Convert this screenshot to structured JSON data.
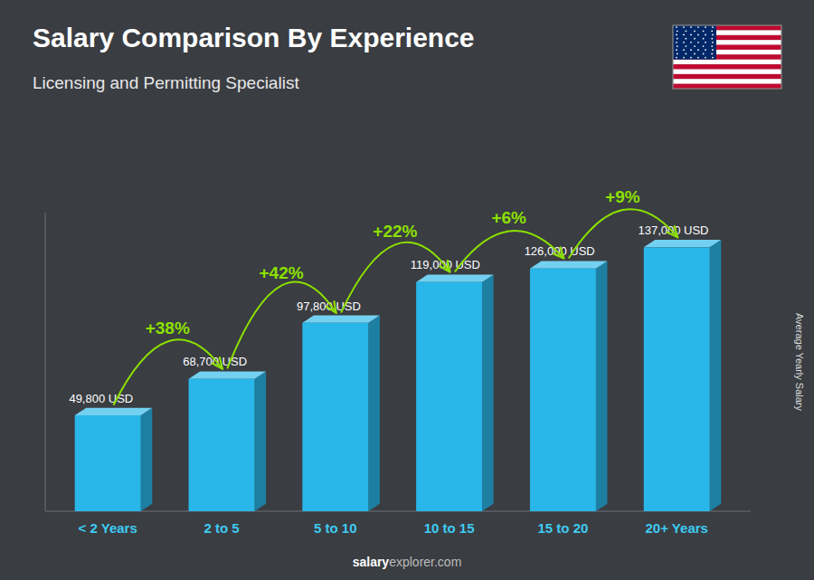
{
  "chart_data": {
    "type": "bar",
    "title": "Salary Comparison By Experience",
    "subtitle": "Licensing and Permitting Specialist",
    "ylabel": "Average Yearly Salary",
    "categories": [
      "< 2 Years",
      "2 to 5",
      "5 to 10",
      "10 to 15",
      "15 to 20",
      "20+ Years"
    ],
    "values": [
      49800,
      68700,
      97800,
      119000,
      126000,
      137000
    ],
    "value_labels": [
      "49,800 USD",
      "68,700 USD",
      "97,800 USD",
      "119,000 USD",
      "126,000 USD",
      "137,000 USD"
    ],
    "data_labels": true,
    "annotations": [
      "+38%",
      "+42%",
      "+22%",
      "+6%",
      "+9%"
    ],
    "footer": [
      "salary",
      "explorer.com"
    ],
    "color": "#29b6e8",
    "ylim": [
      0,
      155000
    ],
    "tick_labels": "x",
    "grid": false
  }
}
